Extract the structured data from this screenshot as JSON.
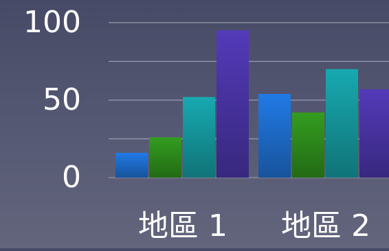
{
  "chart_data": {
    "type": "bar",
    "categories": [
      "地區 1",
      "地區 2"
    ],
    "series": [
      {
        "color": "#1e6fd0",
        "values": [
          16,
          54
        ]
      },
      {
        "color": "#2e8e1c",
        "values": [
          26,
          42
        ]
      },
      {
        "color": "#159aa0",
        "values": [
          52,
          70
        ]
      },
      {
        "color": "#4b35a8",
        "values": [
          95,
          57
        ]
      }
    ],
    "y_tick_labels": [
      "0",
      "50",
      "100"
    ],
    "ylim": [
      0,
      100
    ],
    "grid": true,
    "title": "",
    "xlabel": "",
    "ylabel": ""
  }
}
